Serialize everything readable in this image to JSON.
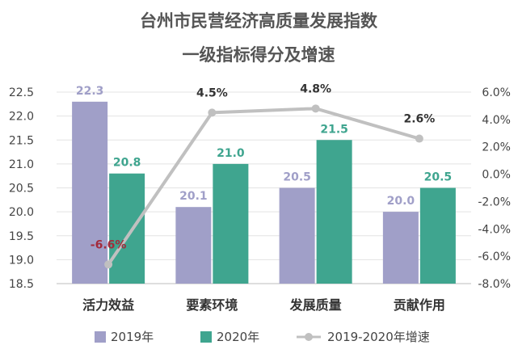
{
  "chart_data": {
    "type": "bar",
    "title": "台州市民营经济高质量发展指数",
    "subtitle": "一级指标得分及增速",
    "categories": [
      "活力效益",
      "要素环境",
      "发展质量",
      "贡献作用"
    ],
    "series": [
      {
        "name": "2019年",
        "type": "bar",
        "axis": "left",
        "values": [
          22.3,
          20.1,
          20.5,
          20.0
        ],
        "labels": [
          "22.3",
          "20.1",
          "20.5",
          "20.0"
        ],
        "color": "#a09fc8",
        "label_color": "#a09fc8"
      },
      {
        "name": "2020年",
        "type": "bar",
        "axis": "left",
        "values": [
          20.8,
          21.0,
          21.5,
          20.5
        ],
        "labels": [
          "20.8",
          "21.0",
          "21.5",
          "20.5"
        ],
        "color": "#3fa58f",
        "label_color": "#3fa58f"
      },
      {
        "name": "2019-2020年增速",
        "type": "line",
        "axis": "right",
        "values": [
          -6.6,
          4.5,
          4.8,
          2.6
        ],
        "labels": [
          "-6.6%",
          "4.5%",
          "4.8%",
          "2.6%"
        ],
        "color": "#c0c0c0",
        "label_colors": [
          "#a32b3c",
          "#333333",
          "#333333",
          "#333333"
        ]
      }
    ],
    "left_axis": {
      "min": 18.5,
      "max": 22.5,
      "ticks": [
        "18.5",
        "19.0",
        "19.5",
        "20.0",
        "20.5",
        "21.0",
        "21.5",
        "22.0",
        "22.5"
      ]
    },
    "right_axis": {
      "min": -8.0,
      "max": 6.0,
      "ticks": [
        "-8.0%",
        "-6.0%",
        "-4.0%",
        "-2.0%",
        "0.0%",
        "2.0%",
        "4.0%",
        "6.0%"
      ]
    },
    "grid": true,
    "legend_position": "bottom"
  }
}
